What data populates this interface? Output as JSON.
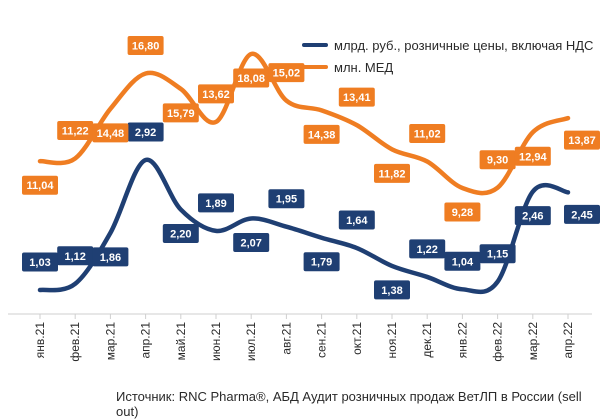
{
  "chart_data": {
    "type": "line",
    "categories": [
      "янв.21",
      "фев.21",
      "мар.21",
      "апр.21",
      "май.21",
      "июн.21",
      "июл.21",
      "авг.21",
      "сен.21",
      "окт.21",
      "ноя.21",
      "дек.21",
      "янв.22",
      "фев.22",
      "мар.22",
      "апр.22"
    ],
    "series": [
      {
        "name": "млрд. руб., розничные цены, включая НДС",
        "color": "#1f3f73",
        "values": [
          1.03,
          1.12,
          1.86,
          2.92,
          2.2,
          1.89,
          2.07,
          1.95,
          1.79,
          1.64,
          1.38,
          1.22,
          1.04,
          1.15,
          2.46,
          2.45
        ],
        "labels": [
          "1,03",
          "1,12",
          "1,86",
          "2,92",
          "2,20",
          "1,89",
          "2,07",
          "1,95",
          "1,79",
          "1,64",
          "1,38",
          "1,22",
          "1,04",
          "1,15",
          "2,46",
          "2,45"
        ]
      },
      {
        "name": "млн. МЕД",
        "color": "#ef7d22",
        "values": [
          11.04,
          11.22,
          14.48,
          16.8,
          15.79,
          13.62,
          18.08,
          15.02,
          14.38,
          13.41,
          11.82,
          11.02,
          9.28,
          9.3,
          12.94,
          13.87
        ],
        "labels": [
          "11,04",
          "11,22",
          "14,48",
          "16,80",
          "15,79",
          "13,62",
          "18,08",
          "15,02",
          "14,38",
          "13,41",
          "11,82",
          "11,02",
          "9,28",
          "9,30",
          "12,94",
          "13,87"
        ]
      }
    ],
    "grid": false,
    "legend_position": "top-right"
  },
  "source_text": "Источник: RNC Pharma®, АБД Аудит розничных продаж ВетЛП в России (sell out)"
}
